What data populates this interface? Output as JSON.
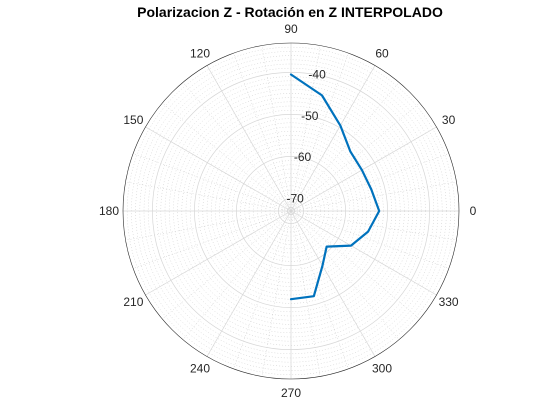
{
  "chart_data": {
    "type": "line",
    "coordinate_system": "polar",
    "title": "Polarizacion Z - Rotación en Z INTERPOLADO",
    "theta_ticks": [
      "0",
      "30",
      "60",
      "90",
      "120",
      "150",
      "180",
      "210",
      "240",
      "270",
      "300",
      "330"
    ],
    "r_ticks": [
      "-70",
      "-60",
      "-50",
      "-40"
    ],
    "rlim": [
      -73,
      -33
    ],
    "grid": true,
    "minor_grid": true,
    "series": [
      {
        "color": "#0072BD",
        "points": [
          {
            "theta": 90,
            "r": -40.5
          },
          {
            "theta": 75,
            "r": -44.5
          },
          {
            "theta": 60,
            "r": -49.5
          },
          {
            "theta": 45,
            "r": -53.0
          },
          {
            "theta": 30,
            "r": -53.5
          },
          {
            "theta": 15,
            "r": -53.2
          },
          {
            "theta": 0,
            "r": -52.0
          },
          {
            "theta": -15,
            "r": -54.0
          },
          {
            "theta": -30,
            "r": -56.5
          },
          {
            "theta": -45,
            "r": -61.0
          },
          {
            "theta": -60,
            "r": -58.0
          },
          {
            "theta": -75,
            "r": -52.0
          },
          {
            "theta": -90,
            "r": -52.0
          }
        ]
      }
    ]
  }
}
